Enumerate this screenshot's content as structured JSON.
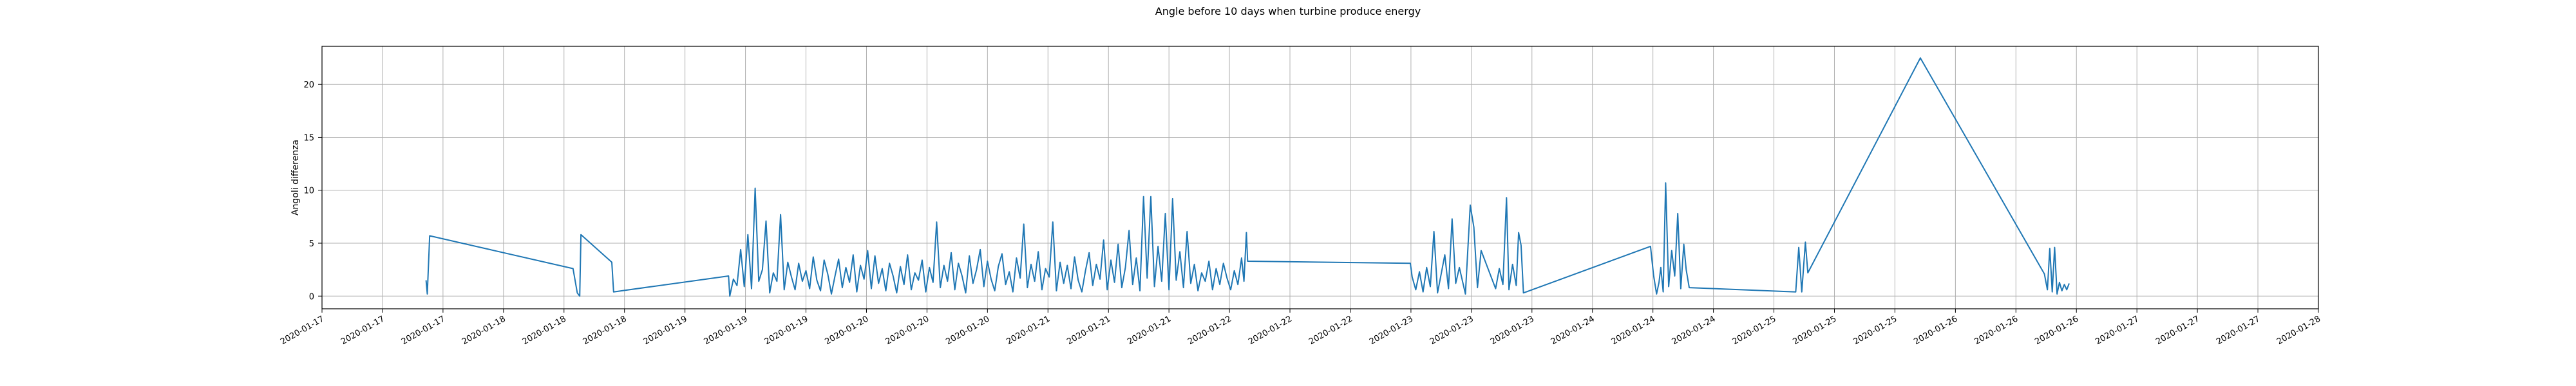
{
  "chart_data": {
    "type": "line",
    "title": "Angle before 10 days when turbine produce energy",
    "xlabel": "",
    "ylabel": "Angoli differenza",
    "ylim": [
      -1.2,
      23.6
    ],
    "yticks": [
      0,
      5,
      10,
      15,
      20
    ],
    "grid": true,
    "xticks": [
      "2020-01-17",
      "2020-01-17",
      "2020-01-17",
      "2020-01-18",
      "2020-01-18",
      "2020-01-18",
      "2020-01-19",
      "2020-01-19",
      "2020-01-19",
      "2020-01-20",
      "2020-01-20",
      "2020-01-20",
      "2020-01-21",
      "2020-01-21",
      "2020-01-21",
      "2020-01-22",
      "2020-01-22",
      "2020-01-22",
      "2020-01-23",
      "2020-01-23",
      "2020-01-23",
      "2020-01-24",
      "2020-01-24",
      "2020-01-24",
      "2020-01-25",
      "2020-01-25",
      "2020-01-25",
      "2020-01-26",
      "2020-01-26",
      "2020-01-26",
      "2020-01-27",
      "2020-01-27",
      "2020-01-27",
      "2020-01-28"
    ],
    "series": [
      {
        "color": "#1f77b4",
        "points": [
          [
            1.72,
            1.5
          ],
          [
            1.74,
            0.2
          ],
          [
            1.78,
            5.7
          ],
          [
            4.15,
            2.6
          ],
          [
            4.22,
            0.3
          ],
          [
            4.26,
            0.0
          ],
          [
            4.28,
            5.8
          ],
          [
            4.79,
            3.2
          ],
          [
            4.82,
            0.4
          ],
          [
            6.72,
            1.9
          ],
          [
            6.74,
            0.0
          ],
          [
            6.8,
            1.6
          ],
          [
            6.86,
            1.0
          ],
          [
            6.92,
            4.4
          ],
          [
            6.98,
            0.9
          ],
          [
            7.04,
            5.8
          ],
          [
            7.1,
            0.7
          ],
          [
            7.16,
            10.2
          ],
          [
            7.22,
            1.4
          ],
          [
            7.28,
            2.5
          ],
          [
            7.34,
            7.1
          ],
          [
            7.4,
            0.3
          ],
          [
            7.46,
            2.2
          ],
          [
            7.52,
            1.4
          ],
          [
            7.58,
            7.7
          ],
          [
            7.64,
            0.6
          ],
          [
            7.7,
            3.2
          ],
          [
            7.76,
            1.8
          ],
          [
            7.82,
            0.6
          ],
          [
            7.88,
            3.1
          ],
          [
            7.94,
            1.4
          ],
          [
            8.0,
            2.4
          ],
          [
            8.06,
            0.7
          ],
          [
            8.12,
            3.7
          ],
          [
            8.18,
            1.5
          ],
          [
            8.24,
            0.5
          ],
          [
            8.3,
            3.4
          ],
          [
            8.36,
            2.1
          ],
          [
            8.42,
            0.2
          ],
          [
            8.48,
            1.9
          ],
          [
            8.54,
            3.5
          ],
          [
            8.6,
            0.8
          ],
          [
            8.66,
            2.7
          ],
          [
            8.72,
            1.3
          ],
          [
            8.78,
            3.9
          ],
          [
            8.84,
            0.4
          ],
          [
            8.9,
            2.9
          ],
          [
            8.96,
            1.6
          ],
          [
            9.02,
            4.3
          ],
          [
            9.08,
            0.7
          ],
          [
            9.14,
            3.8
          ],
          [
            9.2,
            1.2
          ],
          [
            9.26,
            2.6
          ],
          [
            9.32,
            0.5
          ],
          [
            9.38,
            3.1
          ],
          [
            9.44,
            1.9
          ],
          [
            9.5,
            0.3
          ],
          [
            9.56,
            2.8
          ],
          [
            9.62,
            1.1
          ],
          [
            9.68,
            3.9
          ],
          [
            9.74,
            0.6
          ],
          [
            9.8,
            2.2
          ],
          [
            9.86,
            1.5
          ],
          [
            9.92,
            3.4
          ],
          [
            9.98,
            0.4
          ],
          [
            10.04,
            2.7
          ],
          [
            10.1,
            1.3
          ],
          [
            10.16,
            7.0
          ],
          [
            10.22,
            0.8
          ],
          [
            10.28,
            2.9
          ],
          [
            10.34,
            1.4
          ],
          [
            10.4,
            4.1
          ],
          [
            10.46,
            0.6
          ],
          [
            10.52,
            3.1
          ],
          [
            10.58,
            1.9
          ],
          [
            10.64,
            0.3
          ],
          [
            10.7,
            3.8
          ],
          [
            10.76,
            1.2
          ],
          [
            10.82,
            2.5
          ],
          [
            10.88,
            4.4
          ],
          [
            10.94,
            0.9
          ],
          [
            11.0,
            3.3
          ],
          [
            11.06,
            1.6
          ],
          [
            11.12,
            0.5
          ],
          [
            11.18,
            2.8
          ],
          [
            11.24,
            4.0
          ],
          [
            11.3,
            1.1
          ],
          [
            11.36,
            2.3
          ],
          [
            11.42,
            0.4
          ],
          [
            11.48,
            3.6
          ],
          [
            11.54,
            1.7
          ],
          [
            11.6,
            6.8
          ],
          [
            11.66,
            0.8
          ],
          [
            11.72,
            3.0
          ],
          [
            11.78,
            1.4
          ],
          [
            11.84,
            4.2
          ],
          [
            11.9,
            0.6
          ],
          [
            11.96,
            2.6
          ],
          [
            12.02,
            1.8
          ],
          [
            12.08,
            7.0
          ],
          [
            12.14,
            0.5
          ],
          [
            12.2,
            3.2
          ],
          [
            12.26,
            1.2
          ],
          [
            12.32,
            2.9
          ],
          [
            12.38,
            0.7
          ],
          [
            12.44,
            3.7
          ],
          [
            12.5,
            1.5
          ],
          [
            12.56,
            0.4
          ],
          [
            12.62,
            2.4
          ],
          [
            12.68,
            4.1
          ],
          [
            12.74,
            1.0
          ],
          [
            12.8,
            3.0
          ],
          [
            12.86,
            1.6
          ],
          [
            12.92,
            5.3
          ],
          [
            12.98,
            0.6
          ],
          [
            13.04,
            3.4
          ],
          [
            13.1,
            1.3
          ],
          [
            13.16,
            4.9
          ],
          [
            13.22,
            0.8
          ],
          [
            13.28,
            2.7
          ],
          [
            13.34,
            6.2
          ],
          [
            13.4,
            1.1
          ],
          [
            13.46,
            3.6
          ],
          [
            13.52,
            0.5
          ],
          [
            13.58,
            9.4
          ],
          [
            13.64,
            1.7
          ],
          [
            13.7,
            9.4
          ],
          [
            13.76,
            0.9
          ],
          [
            13.82,
            4.7
          ],
          [
            13.88,
            1.4
          ],
          [
            13.94,
            7.8
          ],
          [
            14.0,
            0.6
          ],
          [
            14.06,
            9.2
          ],
          [
            14.12,
            1.5
          ],
          [
            14.18,
            4.2
          ],
          [
            14.24,
            0.8
          ],
          [
            14.3,
            6.1
          ],
          [
            14.36,
            1.2
          ],
          [
            14.42,
            3.0
          ],
          [
            14.48,
            0.5
          ],
          [
            14.54,
            2.2
          ],
          [
            14.6,
            1.4
          ],
          [
            14.66,
            3.3
          ],
          [
            14.72,
            0.6
          ],
          [
            14.78,
            2.6
          ],
          [
            14.84,
            1.1
          ],
          [
            14.9,
            3.1
          ],
          [
            14.96,
            1.7
          ],
          [
            15.02,
            0.6
          ],
          [
            15.08,
            2.4
          ],
          [
            15.14,
            1.1
          ],
          [
            15.2,
            3.6
          ],
          [
            15.24,
            1.4
          ],
          [
            15.28,
            6.0
          ],
          [
            15.3,
            3.3
          ],
          [
            17.99,
            3.1
          ],
          [
            18.02,
            1.8
          ],
          [
            18.08,
            0.6
          ],
          [
            18.14,
            2.3
          ],
          [
            18.2,
            0.4
          ],
          [
            18.26,
            2.7
          ],
          [
            18.32,
            0.9
          ],
          [
            18.38,
            6.1
          ],
          [
            18.44,
            0.3
          ],
          [
            18.5,
            2.1
          ],
          [
            18.56,
            3.9
          ],
          [
            18.62,
            0.7
          ],
          [
            18.68,
            7.3
          ],
          [
            18.74,
            1.2
          ],
          [
            18.8,
            2.7
          ],
          [
            18.9,
            0.2
          ],
          [
            18.98,
            8.6
          ],
          [
            19.04,
            6.5
          ],
          [
            19.1,
            0.8
          ],
          [
            19.16,
            4.3
          ],
          [
            19.4,
            0.7
          ],
          [
            19.46,
            2.6
          ],
          [
            19.52,
            1.1
          ],
          [
            19.58,
            9.3
          ],
          [
            19.62,
            0.6
          ],
          [
            19.68,
            3.0
          ],
          [
            19.74,
            1.0
          ],
          [
            19.78,
            6.0
          ],
          [
            19.82,
            4.8
          ],
          [
            19.86,
            0.3
          ],
          [
            21.96,
            4.7
          ],
          [
            22.01,
            2.0
          ],
          [
            22.06,
            0.2
          ],
          [
            22.1,
            1.3
          ],
          [
            22.13,
            2.7
          ],
          [
            22.17,
            0.4
          ],
          [
            22.21,
            10.7
          ],
          [
            22.26,
            0.9
          ],
          [
            22.31,
            4.3
          ],
          [
            22.36,
            1.9
          ],
          [
            22.41,
            7.8
          ],
          [
            22.46,
            0.7
          ],
          [
            22.51,
            4.9
          ],
          [
            22.55,
            2.5
          ],
          [
            22.6,
            0.8
          ],
          [
            24.36,
            0.4
          ],
          [
            24.41,
            4.6
          ],
          [
            24.46,
            0.4
          ],
          [
            24.52,
            5.1
          ],
          [
            24.56,
            2.2
          ],
          [
            26.42,
            22.5
          ],
          [
            28.47,
            2.1
          ],
          [
            28.52,
            0.6
          ],
          [
            28.56,
            4.5
          ],
          [
            28.6,
            0.4
          ],
          [
            28.64,
            4.6
          ],
          [
            28.68,
            0.2
          ],
          [
            28.72,
            1.3
          ],
          [
            28.76,
            0.5
          ],
          [
            28.8,
            1.1
          ],
          [
            28.84,
            0.6
          ],
          [
            28.88,
            1.2
          ]
        ]
      }
    ]
  }
}
